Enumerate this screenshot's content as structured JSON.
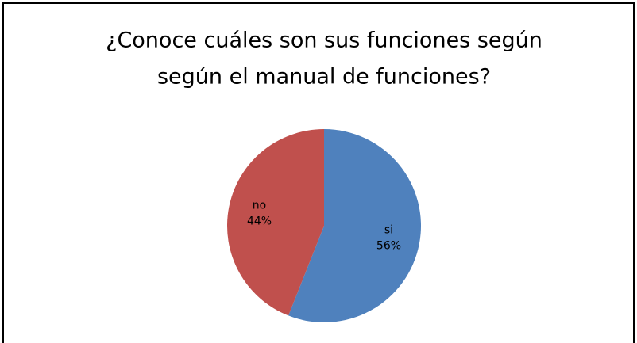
{
  "chart_data": {
    "type": "pie",
    "title": [
      "¿Conoce cuáles son sus funciones según",
      "según el manual  de funciones?"
    ],
    "categories": [
      "si",
      "no"
    ],
    "values": [
      56,
      44
    ],
    "value_labels": [
      "56%",
      "44%"
    ],
    "colors": [
      "#4f81bd",
      "#c0504d"
    ]
  }
}
